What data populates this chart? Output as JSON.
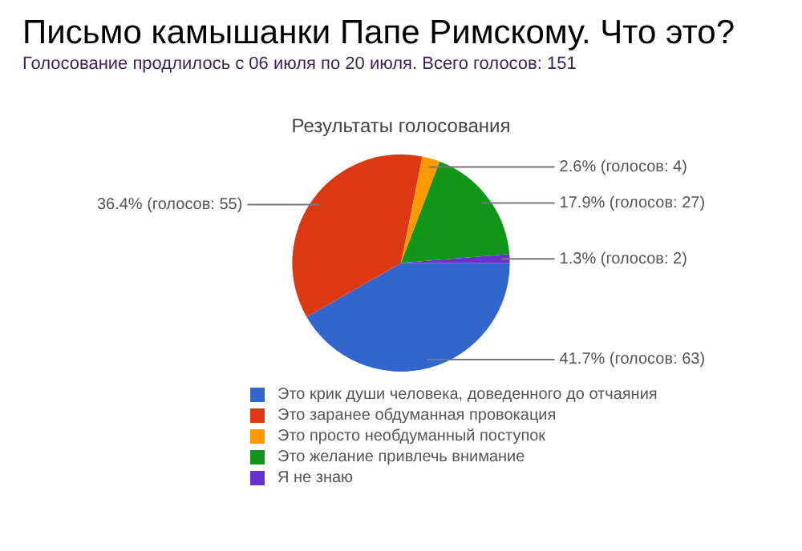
{
  "chart_data": {
    "type": "pie",
    "title": "Письмо камышанки Папе Римскому. Что это?",
    "subtitle": "Голосование продлилось с 06 июля по 20 июля. Всего голосов: 151",
    "annotations": [
      "Результаты голосования"
    ],
    "categories": [
      "Это крик души человека, доведенного до отчаяния",
      "Это заранее обдуманная провокация",
      "Это просто необдуманный поступок",
      "Это желание привлечь внимание",
      "Я не знаю"
    ],
    "values": [
      63,
      55,
      4,
      27,
      2
    ],
    "value_labels": [
      "41.7% (голосов: 63)",
      "36.4% (голосов: 55)",
      "2.6% (голосов: 4)",
      "17.9% (голосов: 27)",
      "1.3% (голосов: 2)"
    ],
    "colors": [
      "#3366cc",
      "#dc3912",
      "#ff9900",
      "#109618",
      "#6633cc"
    ],
    "legend": "bottom"
  }
}
